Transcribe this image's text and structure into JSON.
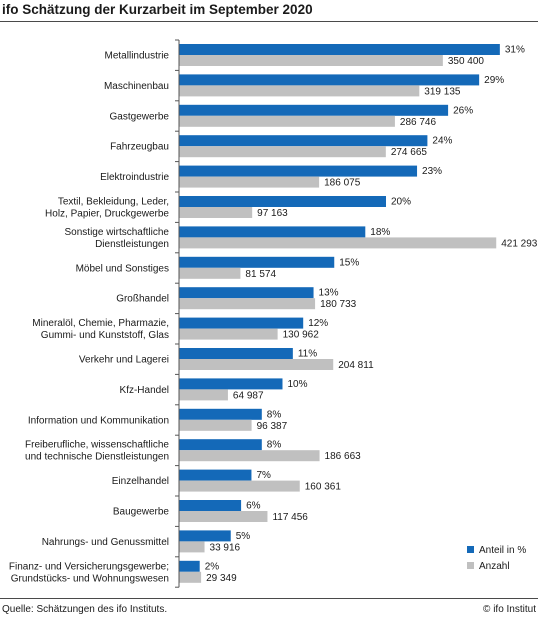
{
  "header": {
    "title": "ifo Schätzung der Kurzarbeit im September 2020"
  },
  "footer": {
    "source": "Quelle: Schätzungen des ifo Instituts.",
    "copyright": "© ifo Institut"
  },
  "colors": {
    "share": "#1469b8",
    "count": "#c0c0c0",
    "axis": "#555555",
    "text": "#1a1a1a"
  },
  "chart_data": {
    "type": "bar",
    "orientation": "horizontal",
    "legend": {
      "position": "bottom-right"
    },
    "grid": false,
    "series": [
      {
        "name": "Anteil in %",
        "unit": "%"
      },
      {
        "name": "Anzahl",
        "unit": ""
      }
    ],
    "categories": [
      "Metallindustrie",
      "Maschinenbau",
      "Gastgewerbe",
      "Fahrzeugbau",
      "Elektroindustrie",
      "Textil, Bekleidung, Leder,\nHolz, Papier, Druckgewerbe",
      "Sonstige wirtschaftliche\nDienstleistungen",
      "Möbel und Sonstiges",
      "Großhandel",
      "Mineralöl, Chemie, Pharmazie,\nGummi- und Kunststoff, Glas",
      "Verkehr und Lagerei",
      "Kfz-Handel",
      "Information und Kommunikation",
      "Freiberufliche, wissenschaftliche\nund technische Dienstleistungen",
      "Einzelhandel",
      "Baugewerbe",
      "Nahrungs- und Genussmittel",
      "Finanz- und Versicherungsgewerbe;\nGrundstücks- und Wohnungswesen"
    ],
    "share_values": [
      31,
      29,
      26,
      24,
      23,
      20,
      18,
      15,
      13,
      12,
      11,
      10,
      8,
      8,
      7,
      6,
      5,
      2
    ],
    "share_labels": [
      "31%",
      "29%",
      "26%",
      "24%",
      "23%",
      "20%",
      "18%",
      "15%",
      "13%",
      "12%",
      "11%",
      "10%",
      "8%",
      "8%",
      "7%",
      "6%",
      "5%",
      "2%"
    ],
    "count_values": [
      350400,
      319135,
      286746,
      274665,
      186075,
      97163,
      421293,
      81574,
      180733,
      130962,
      204811,
      64987,
      96387,
      186663,
      160361,
      117456,
      33916,
      29349
    ],
    "count_labels": [
      "350 400",
      "319 135",
      "286 746",
      "274 665",
      "186 075",
      "97 163",
      "421 293",
      "81 574",
      "180 733",
      "130 962",
      "204 811",
      "64 987",
      "96 387",
      "186 663",
      "160 361",
      "117 456",
      "33 916",
      "29 349"
    ]
  }
}
